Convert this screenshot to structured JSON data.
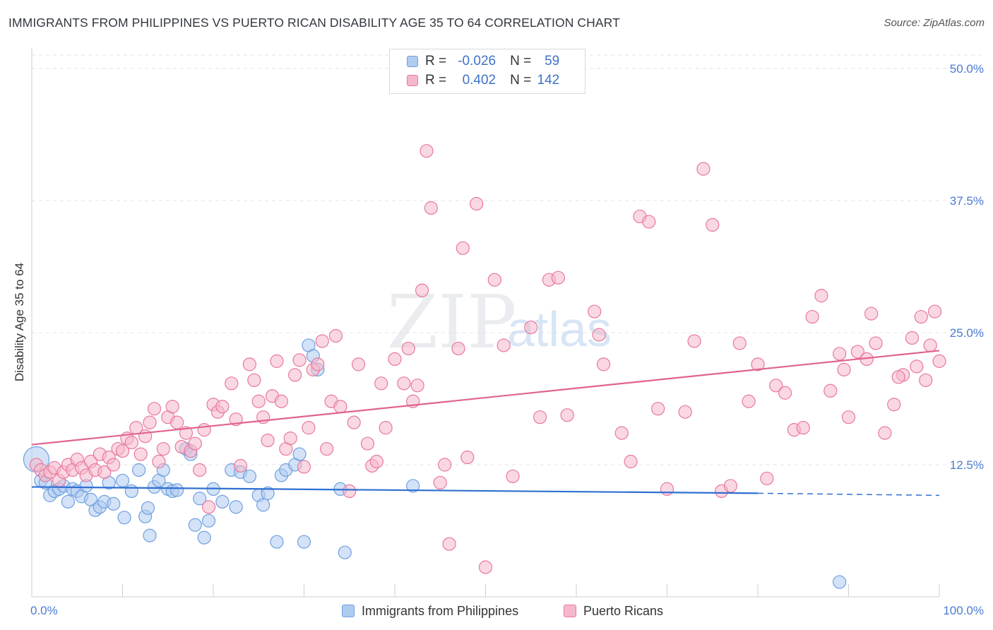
{
  "title": "IMMIGRANTS FROM PHILIPPINES VS PUERTO RICAN DISABILITY AGE 35 TO 64 CORRELATION CHART",
  "source": "Source: ZipAtlas.com",
  "watermark": {
    "zip": "ZIP",
    "atlas": "atlas"
  },
  "colors": {
    "blue": "#6fa0e0",
    "blue_fill": "#aecbf0",
    "pink": "#e8789f",
    "pink_fill": "#f5b8cb",
    "blue_line": "#2f6fd1",
    "pink_line": "#e0638f",
    "label": "#4a7bd0"
  },
  "legend": {
    "rows": [
      {
        "r_label": "R =",
        "r_value": "-0.026",
        "n_label": "N =",
        "n_value": "59",
        "color": "blue"
      },
      {
        "r_label": "R =",
        "r_value": "0.402",
        "n_label": "N =",
        "n_value": "142",
        "color": "pink"
      }
    ]
  },
  "bottom_legend": [
    {
      "label": "Immigrants from Philippines",
      "color": "blue"
    },
    {
      "label": "Puerto Ricans",
      "color": "pink"
    }
  ],
  "chart_data": {
    "type": "scatter",
    "ylabel": "Disability Age 35 to 64",
    "xlim": [
      0,
      100
    ],
    "ylim": [
      0,
      50
    ],
    "x_tick_labels": [
      {
        "value": 0,
        "label": "0.0%"
      },
      {
        "value": 100,
        "label": "100.0%"
      }
    ],
    "y_tick_labels": [
      {
        "value": 12.5,
        "label": "12.5%"
      },
      {
        "value": 25,
        "label": "25.0%"
      },
      {
        "value": 37.5,
        "label": "37.5%"
      },
      {
        "value": 50,
        "label": "50.0%"
      }
    ],
    "grid": true,
    "legend_position": "top-center",
    "series": [
      {
        "name": "Immigrants from Philippines",
        "color": "blue",
        "trend": {
          "x0": 0,
          "y0": 10.4,
          "x1": 80,
          "y1": 9.8,
          "dashed_to": 100,
          "dashed_y": 9.6
        },
        "points": [
          [
            0.5,
            13.0
          ],
          [
            1.0,
            11.0
          ],
          [
            1.5,
            10.8
          ],
          [
            2,
            9.6
          ],
          [
            2.5,
            10.0
          ],
          [
            3,
            10.2
          ],
          [
            3.5,
            10.5
          ],
          [
            4,
            9.0
          ],
          [
            4.5,
            10.2
          ],
          [
            5,
            10.0
          ],
          [
            5.5,
            9.5
          ],
          [
            6,
            10.5
          ],
          [
            6.5,
            9.2
          ],
          [
            7,
            8.2
          ],
          [
            7.5,
            8.5
          ],
          [
            8,
            9.0
          ],
          [
            8.5,
            10.8
          ],
          [
            9,
            8.8
          ],
          [
            10,
            11.0
          ],
          [
            10.2,
            7.5
          ],
          [
            11,
            10.0
          ],
          [
            11.8,
            12.0
          ],
          [
            12.5,
            7.6
          ],
          [
            12.8,
            8.4
          ],
          [
            13,
            5.8
          ],
          [
            13.5,
            10.4
          ],
          [
            14,
            11.0
          ],
          [
            14.5,
            12.0
          ],
          [
            15,
            10.2
          ],
          [
            15.5,
            10.0
          ],
          [
            16,
            10.1
          ],
          [
            17,
            14.0
          ],
          [
            17.5,
            13.5
          ],
          [
            18,
            6.8
          ],
          [
            18.5,
            9.3
          ],
          [
            19,
            5.6
          ],
          [
            19.5,
            7.2
          ],
          [
            20,
            10.2
          ],
          [
            21,
            9.0
          ],
          [
            22,
            12.0
          ],
          [
            22.5,
            8.5
          ],
          [
            23,
            11.8
          ],
          [
            24,
            11.4
          ],
          [
            25,
            9.6
          ],
          [
            25.5,
            8.7
          ],
          [
            26,
            9.8
          ],
          [
            27,
            5.2
          ],
          [
            27.5,
            11.5
          ],
          [
            28,
            12.0
          ],
          [
            29,
            12.5
          ],
          [
            29.5,
            13.5
          ],
          [
            30,
            5.2
          ],
          [
            30.5,
            23.8
          ],
          [
            31,
            22.8
          ],
          [
            31.5,
            21.5
          ],
          [
            34,
            10.2
          ],
          [
            34.5,
            4.2
          ],
          [
            42,
            10.5
          ],
          [
            89,
            1.4
          ]
        ]
      },
      {
        "name": "Puerto Ricans",
        "color": "pink",
        "trend": {
          "x0": 0,
          "y0": 14.4,
          "x1": 100,
          "y1": 23.3
        },
        "points": [
          [
            0.5,
            12.5
          ],
          [
            1,
            12.0
          ],
          [
            1.5,
            11.5
          ],
          [
            2,
            11.8
          ],
          [
            2.5,
            12.2
          ],
          [
            3,
            11.0
          ],
          [
            3.5,
            11.8
          ],
          [
            4,
            12.5
          ],
          [
            4.5,
            12.0
          ],
          [
            5,
            13.0
          ],
          [
            5.5,
            12.2
          ],
          [
            6,
            11.5
          ],
          [
            6.5,
            12.8
          ],
          [
            7,
            12.0
          ],
          [
            7.5,
            13.5
          ],
          [
            8,
            11.8
          ],
          [
            8.5,
            13.2
          ],
          [
            9,
            12.5
          ],
          [
            9.5,
            14.0
          ],
          [
            10,
            13.8
          ],
          [
            10.5,
            15.0
          ],
          [
            11,
            14.6
          ],
          [
            11.5,
            16.0
          ],
          [
            12,
            13.5
          ],
          [
            12.5,
            15.2
          ],
          [
            13,
            16.5
          ],
          [
            13.5,
            17.8
          ],
          [
            14,
            12.8
          ],
          [
            14.5,
            14.0
          ],
          [
            15,
            17.0
          ],
          [
            15.5,
            18.0
          ],
          [
            16,
            16.5
          ],
          [
            16.5,
            14.2
          ],
          [
            17,
            15.5
          ],
          [
            17.5,
            13.8
          ],
          [
            18,
            14.5
          ],
          [
            18.5,
            12.0
          ],
          [
            19,
            15.8
          ],
          [
            19.5,
            8.5
          ],
          [
            20,
            18.2
          ],
          [
            20.5,
            17.5
          ],
          [
            21,
            18.0
          ],
          [
            22,
            20.2
          ],
          [
            22.5,
            16.8
          ],
          [
            23,
            12.4
          ],
          [
            24,
            22.0
          ],
          [
            24.5,
            20.5
          ],
          [
            25,
            18.5
          ],
          [
            25.5,
            17.0
          ],
          [
            26,
            14.8
          ],
          [
            26.5,
            19.0
          ],
          [
            27,
            22.3
          ],
          [
            27.5,
            18.5
          ],
          [
            28,
            14.0
          ],
          [
            28.5,
            15.0
          ],
          [
            29,
            21.0
          ],
          [
            29.5,
            22.4
          ],
          [
            30,
            12.3
          ],
          [
            30.5,
            16.0
          ],
          [
            31,
            21.5
          ],
          [
            31.5,
            22.0
          ],
          [
            32,
            24.2
          ],
          [
            32.5,
            14.0
          ],
          [
            33,
            18.5
          ],
          [
            33.5,
            24.7
          ],
          [
            34,
            18.0
          ],
          [
            35,
            10.0
          ],
          [
            35.5,
            16.5
          ],
          [
            36,
            22.0
          ],
          [
            37,
            14.5
          ],
          [
            37.5,
            12.4
          ],
          [
            38,
            12.8
          ],
          [
            38.5,
            20.2
          ],
          [
            39,
            16.0
          ],
          [
            40,
            22.5
          ],
          [
            41,
            20.2
          ],
          [
            41.5,
            23.5
          ],
          [
            42,
            18.5
          ],
          [
            42.5,
            20.0
          ],
          [
            43,
            29.0
          ],
          [
            43.5,
            42.2
          ],
          [
            44,
            36.8
          ],
          [
            45,
            10.8
          ],
          [
            45.5,
            12.5
          ],
          [
            46,
            5.0
          ],
          [
            47,
            23.5
          ],
          [
            47.5,
            33.0
          ],
          [
            48,
            13.2
          ],
          [
            49,
            37.2
          ],
          [
            50,
            2.8
          ],
          [
            51,
            30.0
          ],
          [
            52,
            23.8
          ],
          [
            53,
            11.4
          ],
          [
            55,
            25.5
          ],
          [
            56,
            17.0
          ],
          [
            57,
            30.0
          ],
          [
            58,
            30.2
          ],
          [
            59,
            17.2
          ],
          [
            62,
            27.0
          ],
          [
            62.5,
            24.8
          ],
          [
            63,
            22.0
          ],
          [
            65,
            15.5
          ],
          [
            66,
            12.8
          ],
          [
            67,
            36.0
          ],
          [
            68,
            35.5
          ],
          [
            69,
            17.8
          ],
          [
            70,
            10.2
          ],
          [
            72,
            17.5
          ],
          [
            73,
            24.2
          ],
          [
            74,
            40.5
          ],
          [
            75,
            35.2
          ],
          [
            76,
            10.0
          ],
          [
            77,
            10.5
          ],
          [
            78,
            24.0
          ],
          [
            79,
            18.5
          ],
          [
            80,
            22.0
          ],
          [
            81,
            11.2
          ],
          [
            82,
            20.0
          ],
          [
            83,
            19.3
          ],
          [
            84,
            15.8
          ],
          [
            85,
            16.0
          ],
          [
            86,
            26.5
          ],
          [
            87,
            28.5
          ],
          [
            88,
            19.5
          ],
          [
            89,
            23.0
          ],
          [
            89.5,
            21.5
          ],
          [
            90,
            17.0
          ],
          [
            91,
            23.2
          ],
          [
            92,
            22.5
          ],
          [
            93,
            24.0
          ],
          [
            94,
            15.5
          ],
          [
            95,
            18.2
          ],
          [
            96,
            21.0
          ],
          [
            97,
            24.5
          ],
          [
            98,
            26.5
          ],
          [
            99,
            23.8
          ],
          [
            99.5,
            27.0
          ],
          [
            100,
            22.3
          ],
          [
            98.5,
            20.5
          ],
          [
            97.5,
            21.8
          ],
          [
            92.5,
            26.8
          ],
          [
            95.5,
            20.8
          ]
        ]
      }
    ]
  }
}
